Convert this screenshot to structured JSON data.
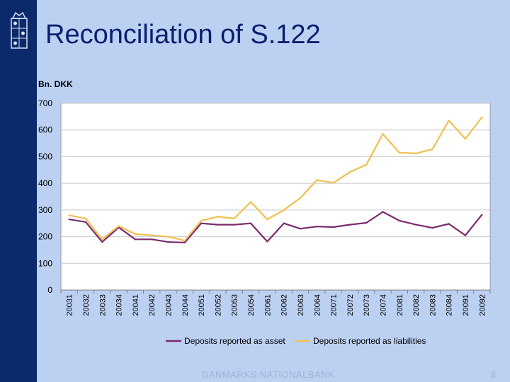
{
  "slide": {
    "title": "Reconciliation of S.122",
    "footer": "DANMARKS NATIONALBANK",
    "page_number": "8"
  },
  "colors": {
    "background": "#bcd0f2",
    "sidebar": "#0b2a6b",
    "title": "#0a1f6f",
    "series_asset": "#7b2a6e",
    "series_liabilities": "#f0c050"
  },
  "chart_data": {
    "type": "line",
    "title": "",
    "ylabel": "Bn. DKK",
    "xlabel": "",
    "ylim": [
      0,
      700
    ],
    "yticks": [
      0,
      100,
      200,
      300,
      400,
      500,
      600,
      700
    ],
    "legend_position": "bottom",
    "categories": [
      "20031",
      "20032",
      "20033",
      "20034",
      "20041",
      "20042",
      "20043",
      "20044",
      "20051",
      "20052",
      "20053",
      "20054",
      "20061",
      "20062",
      "20063",
      "20064",
      "20071",
      "20072",
      "20073",
      "20074",
      "20081",
      "20082",
      "20083",
      "20084",
      "20091",
      "20092"
    ],
    "series": [
      {
        "name": "Deposits reported as asset",
        "color": "#7b2a6e",
        "values": [
          265,
          255,
          180,
          235,
          190,
          190,
          180,
          178,
          250,
          245,
          245,
          250,
          182,
          250,
          230,
          238,
          236,
          245,
          252,
          293,
          260,
          245,
          233,
          248,
          205,
          282
        ]
      },
      {
        "name": "Deposits reported as liabilities",
        "color": "#f0c050",
        "values": [
          280,
          268,
          190,
          240,
          210,
          205,
          200,
          185,
          260,
          275,
          268,
          330,
          265,
          300,
          345,
          412,
          402,
          442,
          470,
          585,
          515,
          512,
          528,
          635,
          567,
          647
        ]
      }
    ]
  }
}
